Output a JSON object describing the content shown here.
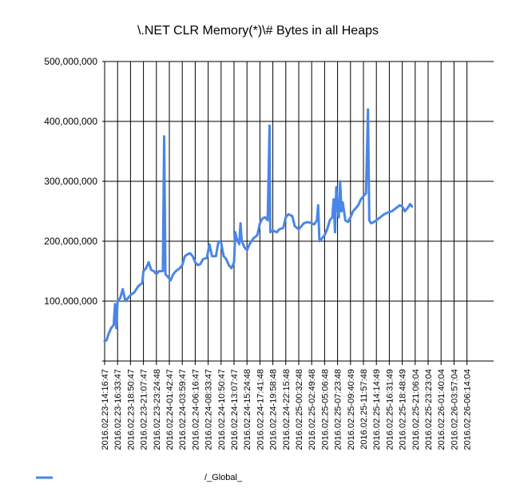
{
  "chart_data": {
    "type": "line",
    "title": "\\.NET CLR Memory(*)\\# Bytes in all Heaps",
    "xlabel": "",
    "ylabel": "",
    "ylim": [
      0,
      500000000
    ],
    "yticks": [
      {
        "value": 100000000,
        "label": "100,000,000"
      },
      {
        "value": 200000000,
        "label": "200,000,000"
      },
      {
        "value": 300000000,
        "label": "300,000,000"
      },
      {
        "value": 400000000,
        "label": "400,000,000"
      },
      {
        "value": 500000000,
        "label": "500,000,000"
      }
    ],
    "categories": [
      "2016.02.23-14:16:47",
      "2016.02.23-16:33:47",
      "2016.02.23-18:50:47",
      "2016.02.23-21:07:47",
      "2016.02.23-23:24:48",
      "2016.02.24-01:42:47",
      "2016.02.24-03:59:47",
      "2016.02.24-06:16:47",
      "2016.02.24-08:33:47",
      "2016.02.24-10:50:47",
      "2016.02.24-13:07:47",
      "2016.02.24-15:24:48",
      "2016.02.24-17:41:48",
      "2016.02.24-19:58:48",
      "2016.02.24-22:15:48",
      "2016.02.25-00:32:48",
      "2016.02.25-02:49:48",
      "2016.02.25-05:06:48",
      "2016.02.25-07:23:48",
      "2016.02.25-09:40:49",
      "2016.02.25-11:57:48",
      "2016.02.25-14:14:49",
      "2016.02.25-16:31:49",
      "2016.02.25-18:48:49",
      "2016.02.25-21:06:04",
      "2016.02.25-23:23:04",
      "2016.02.26-01:40:04",
      "2016.02.26-03:57:04",
      "2016.02.26-06:14:04"
    ],
    "grid": true,
    "legend_position": "bottom-left",
    "series": [
      {
        "name": "/_Global_",
        "color": "#4a86e8",
        "points": [
          [
            0.0,
            33000000
          ],
          [
            0.15,
            35000000
          ],
          [
            0.3,
            45000000
          ],
          [
            0.5,
            55000000
          ],
          [
            0.7,
            60000000
          ],
          [
            0.8,
            95000000
          ],
          [
            0.9,
            55000000
          ],
          [
            1.0,
            100000000
          ],
          [
            1.2,
            105000000
          ],
          [
            1.4,
            120000000
          ],
          [
            1.6,
            100000000
          ],
          [
            1.8,
            105000000
          ],
          [
            2.0,
            110000000
          ],
          [
            2.3,
            115000000
          ],
          [
            2.6,
            125000000
          ],
          [
            2.9,
            130000000
          ],
          [
            3.0,
            150000000
          ],
          [
            3.2,
            155000000
          ],
          [
            3.4,
            165000000
          ],
          [
            3.6,
            152000000
          ],
          [
            3.8,
            150000000
          ],
          [
            4.0,
            145000000
          ],
          [
            4.2,
            150000000
          ],
          [
            4.5,
            150000000
          ],
          [
            4.6,
            375000000
          ],
          [
            4.7,
            145000000
          ],
          [
            4.9,
            140000000
          ],
          [
            5.1,
            135000000
          ],
          [
            5.3,
            145000000
          ],
          [
            5.5,
            150000000
          ],
          [
            5.8,
            155000000
          ],
          [
            6.0,
            160000000
          ],
          [
            6.2,
            175000000
          ],
          [
            6.4,
            178000000
          ],
          [
            6.6,
            180000000
          ],
          [
            6.8,
            175000000
          ],
          [
            7.0,
            165000000
          ],
          [
            7.2,
            160000000
          ],
          [
            7.4,
            162000000
          ],
          [
            7.6,
            170000000
          ],
          [
            7.9,
            172000000
          ],
          [
            8.1,
            195000000
          ],
          [
            8.3,
            175000000
          ],
          [
            8.6,
            175000000
          ],
          [
            8.8,
            200000000
          ],
          [
            9.0,
            198000000
          ],
          [
            9.2,
            175000000
          ],
          [
            9.4,
            170000000
          ],
          [
            9.6,
            160000000
          ],
          [
            9.8,
            155000000
          ],
          [
            10.0,
            165000000
          ],
          [
            10.1,
            215000000
          ],
          [
            10.2,
            205000000
          ],
          [
            10.4,
            195000000
          ],
          [
            10.5,
            230000000
          ],
          [
            10.6,
            200000000
          ],
          [
            10.8,
            190000000
          ],
          [
            11.0,
            185000000
          ],
          [
            11.2,
            195000000
          ],
          [
            11.5,
            205000000
          ],
          [
            11.8,
            210000000
          ],
          [
            12.0,
            230000000
          ],
          [
            12.2,
            238000000
          ],
          [
            12.4,
            240000000
          ],
          [
            12.6,
            235000000
          ],
          [
            12.75,
            393000000
          ],
          [
            12.8,
            215000000
          ],
          [
            13.0,
            218000000
          ],
          [
            13.3,
            215000000
          ],
          [
            13.5,
            220000000
          ],
          [
            13.8,
            222000000
          ],
          [
            14.0,
            240000000
          ],
          [
            14.2,
            245000000
          ],
          [
            14.5,
            242000000
          ],
          [
            14.7,
            225000000
          ],
          [
            15.0,
            220000000
          ],
          [
            15.2,
            225000000
          ],
          [
            15.4,
            230000000
          ],
          [
            15.7,
            232000000
          ],
          [
            16.0,
            230000000
          ],
          [
            16.2,
            228000000
          ],
          [
            16.4,
            235000000
          ],
          [
            16.5,
            260000000
          ],
          [
            16.6,
            200000000
          ],
          [
            16.8,
            205000000
          ],
          [
            17.0,
            210000000
          ],
          [
            17.2,
            220000000
          ],
          [
            17.4,
            235000000
          ],
          [
            17.6,
            240000000
          ],
          [
            17.7,
            270000000
          ],
          [
            17.8,
            215000000
          ],
          [
            17.9,
            290000000
          ],
          [
            18.0,
            255000000
          ],
          [
            18.1,
            240000000
          ],
          [
            18.2,
            300000000
          ],
          [
            18.3,
            250000000
          ],
          [
            18.4,
            265000000
          ],
          [
            18.6,
            235000000
          ],
          [
            18.8,
            232000000
          ],
          [
            19.0,
            240000000
          ],
          [
            19.2,
            250000000
          ],
          [
            19.4,
            255000000
          ],
          [
            19.6,
            260000000
          ],
          [
            19.8,
            270000000
          ],
          [
            20.0,
            275000000
          ],
          [
            20.2,
            280000000
          ],
          [
            20.35,
            420000000
          ],
          [
            20.45,
            235000000
          ],
          [
            20.6,
            230000000
          ],
          [
            20.8,
            232000000
          ],
          [
            21.0,
            235000000
          ],
          [
            21.3,
            240000000
          ],
          [
            21.6,
            245000000
          ],
          [
            21.9,
            248000000
          ],
          [
            22.2,
            250000000
          ],
          [
            22.5,
            255000000
          ],
          [
            22.8,
            260000000
          ],
          [
            23.0,
            258000000
          ],
          [
            23.2,
            250000000
          ],
          [
            23.4,
            255000000
          ],
          [
            23.6,
            262000000
          ],
          [
            23.75,
            258000000
          ]
        ]
      }
    ]
  },
  "legend": {
    "label": "/_Global_",
    "color": "#4a86e8"
  }
}
